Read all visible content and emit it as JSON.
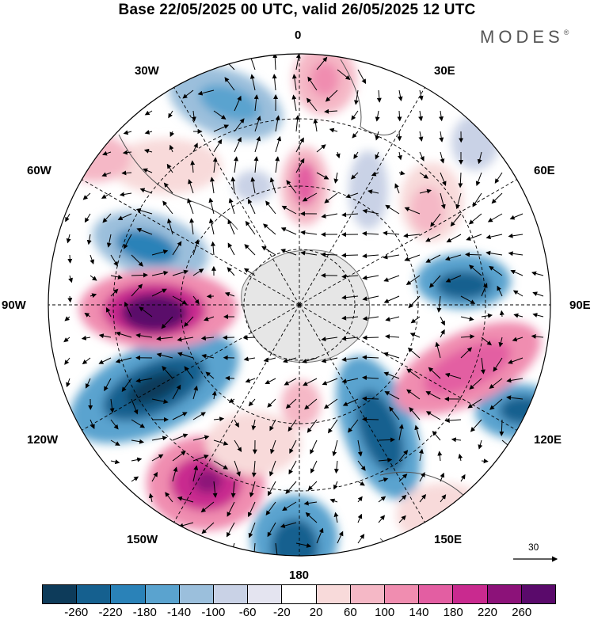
{
  "header": {
    "title": "Base 22/05/2025 00 UTC, valid 26/05/2025 12 UTC",
    "brand": "MODES"
  },
  "map": {
    "projection": "polar-stereographic-south",
    "longitude_labels": [
      "0",
      "30E",
      "60E",
      "90E",
      "120E",
      "150E",
      "180",
      "150W",
      "120W",
      "90W",
      "60W",
      "30W"
    ],
    "field": "geopotential-height-anomaly",
    "overlay": "wind-vectors",
    "land_color": "#e6e6e6",
    "grid": true
  },
  "wind_reference": {
    "value": "30"
  },
  "colorbar": {
    "colors": [
      "#0d3b5a",
      "#15608f",
      "#2a82b8",
      "#5aa3cf",
      "#9bbfdc",
      "#c9d2e6",
      "#e4e4f0",
      "#ffffff",
      "#f8dada",
      "#f5b8c6",
      "#f08db0",
      "#e35ea2",
      "#c92a8f",
      "#8c1279",
      "#5a0a6b"
    ],
    "tick_labels": [
      "-260",
      "-220",
      "-180",
      "-140",
      "-100",
      "-60",
      "-20",
      "20",
      "60",
      "100",
      "140",
      "180",
      "220",
      "260"
    ]
  }
}
